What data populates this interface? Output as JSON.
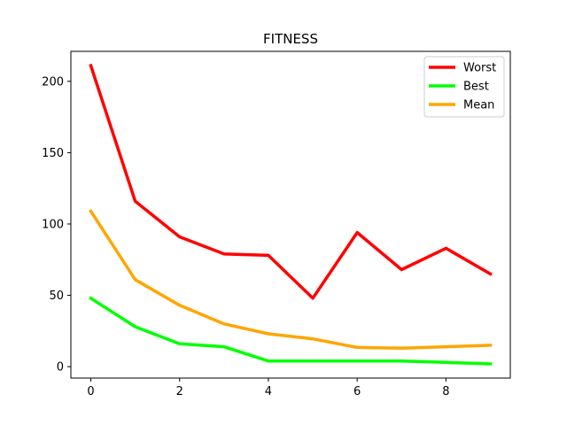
{
  "chart_data": {
    "type": "line",
    "title": "FITNESS",
    "xlabel": "",
    "ylabel": "",
    "x": [
      0,
      1,
      2,
      3,
      4,
      5,
      6,
      7,
      8,
      9
    ],
    "xlim": [
      -0.45,
      9.45
    ],
    "ylim": [
      -8,
      221
    ],
    "xticks": [
      0,
      2,
      4,
      6,
      8
    ],
    "yticks": [
      0,
      50,
      100,
      150,
      200
    ],
    "grid": false,
    "legend": "top-right",
    "series": [
      {
        "name": "Worst",
        "color": "#ff0000",
        "values": [
          211,
          116,
          91,
          79,
          78,
          48,
          94,
          68,
          83,
          65
        ]
      },
      {
        "name": "Best",
        "color": "#00ff00",
        "values": [
          48,
          28,
          16,
          14,
          4,
          4,
          4,
          4,
          3,
          2
        ]
      },
      {
        "name": "Mean",
        "color": "#ffa500",
        "values": [
          109,
          61,
          43,
          30,
          23,
          19.5,
          13.5,
          13,
          14,
          15
        ]
      }
    ]
  }
}
